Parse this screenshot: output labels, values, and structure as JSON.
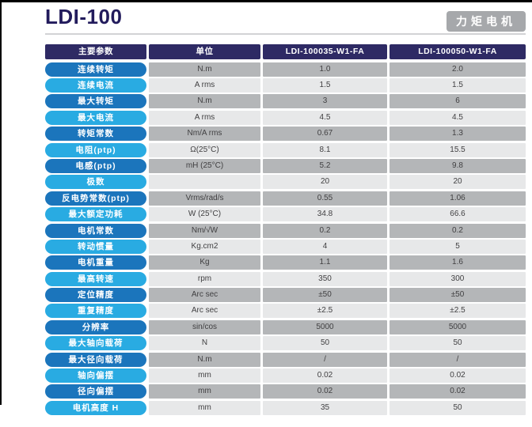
{
  "page": {
    "title": "LDI-100",
    "badge": "力矩电机"
  },
  "colors": {
    "title_navy": "#221b5c",
    "header_navy": "#2e2a64",
    "pill_dark_blue": "#1b75bc",
    "pill_light_blue": "#29abe2",
    "cell_gray_dark": "#b4b6b8",
    "cell_gray_light": "#e7e8e9",
    "badge_gray": "#a6a8ab"
  },
  "table": {
    "headers": [
      "主要参数",
      "单位",
      "LDI-100035-W1-FA",
      "LDI-100050-W1-FA"
    ],
    "rows": [
      {
        "param": "连续转矩",
        "unit": "N.m",
        "v1": "1.0",
        "v2": "2.0"
      },
      {
        "param": "连续电流",
        "unit": "A rms",
        "v1": "1.5",
        "v2": "1.5"
      },
      {
        "param": "最大转矩",
        "unit": "N.m",
        "v1": "3",
        "v2": "6"
      },
      {
        "param": "最大电流",
        "unit": "A rms",
        "v1": "4.5",
        "v2": "4.5"
      },
      {
        "param": "转矩常数",
        "unit": "Nm/A rms",
        "v1": "0.67",
        "v2": "1.3"
      },
      {
        "param": "电阻(ptp)",
        "unit": "Ω(25°C)",
        "v1": "8.1",
        "v2": "15.5"
      },
      {
        "param": "电感(ptp)",
        "unit": "mH (25°C)",
        "v1": "5.2",
        "v2": "9.8"
      },
      {
        "param": "极数",
        "unit": "",
        "v1": "20",
        "v2": "20"
      },
      {
        "param": "反电势常数(ptp)",
        "unit": "Vrms/rad/s",
        "v1": "0.55",
        "v2": "1.06"
      },
      {
        "param": "最大额定功耗",
        "unit": "W (25°C)",
        "v1": "34.8",
        "v2": "66.6"
      },
      {
        "param": "电机常数",
        "unit": "Nm/√W",
        "v1": "0.2",
        "v2": "0.2"
      },
      {
        "param": "转动惯量",
        "unit": "Kg.cm2",
        "v1": "4",
        "v2": "5"
      },
      {
        "param": "电机重量",
        "unit": "Kg",
        "v1": "1.1",
        "v2": "1.6"
      },
      {
        "param": "最高转速",
        "unit": "rpm",
        "v1": "350",
        "v2": "300"
      },
      {
        "param": "定位精度",
        "unit": "Arc sec",
        "v1": "±50",
        "v2": "±50"
      },
      {
        "param": "重复精度",
        "unit": "Arc sec",
        "v1": "±2.5",
        "v2": "±2.5"
      },
      {
        "param": "分辨率",
        "unit": "sin/cos",
        "v1": "5000",
        "v2": "5000"
      },
      {
        "param": "最大轴向载荷",
        "unit": "N",
        "v1": "50",
        "v2": "50"
      },
      {
        "param": "最大径向载荷",
        "unit": "N.m",
        "v1": "/",
        "v2": "/"
      },
      {
        "param": "轴向偏摆",
        "unit": "mm",
        "v1": "0.02",
        "v2": "0.02"
      },
      {
        "param": "径向偏摆",
        "unit": "mm",
        "v1": "0.02",
        "v2": "0.02"
      },
      {
        "param": "电机高度 H",
        "unit": "mm",
        "v1": "35",
        "v2": "50"
      }
    ]
  }
}
